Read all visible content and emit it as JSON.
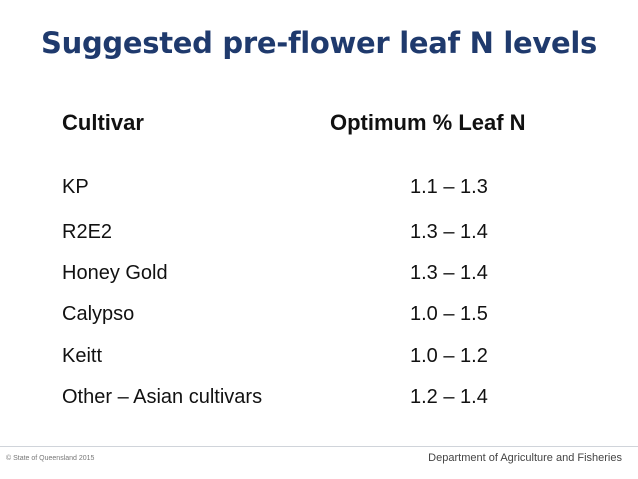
{
  "slide": {
    "title": "Suggested pre-flower leaf N levels",
    "header_cultivar": "Cultivar",
    "header_optimum": "Optimum % Leaf N"
  },
  "rows": [
    {
      "cultivar": "KP",
      "value": "1.1 – 1.3"
    },
    {
      "cultivar": "R2E2",
      "value": "1.3 – 1.4"
    },
    {
      "cultivar": "Honey Gold",
      "value": "1.3 – 1.4"
    },
    {
      "cultivar": "Calypso",
      "value": "1.0 – 1.5"
    },
    {
      "cultivar": "Keitt",
      "value": "1.0 – 1.2"
    },
    {
      "cultivar": "Other – Asian cultivars",
      "value": "1.2 – 1.4"
    }
  ],
  "footer": {
    "copyright": "© State of Queensland 2015",
    "department": "Department of Agriculture and Fisheries"
  },
  "colors": {
    "title": "#1f3a6d",
    "text": "#111111"
  }
}
